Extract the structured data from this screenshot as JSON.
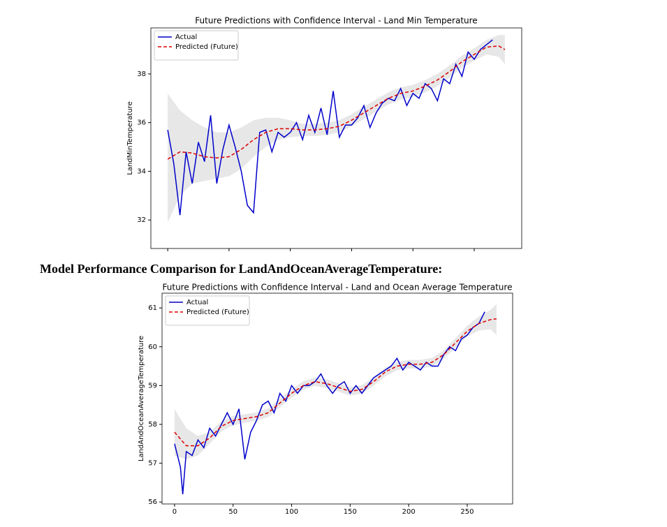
{
  "heading": "Model Performance Comparison for LandAndOceanAverageTemperature:",
  "chart_data": [
    {
      "type": "line",
      "title": "Future Predictions with Confidence Interval - Land Min Temperature",
      "ylabel": "LandMinTemperature",
      "xlim": [
        -13.75,
        288.75
      ],
      "ylim": [
        30.83,
        39.89
      ],
      "xticks": [
        0,
        50,
        100,
        150,
        200,
        250
      ],
      "xtick_labels": false,
      "yticks": [
        32,
        34,
        36,
        38
      ],
      "legend": "upper left",
      "series": [
        {
          "name": "Actual",
          "color": "#0000cc",
          "x": [
            0,
            5,
            10,
            15,
            20,
            25,
            30,
            35,
            40,
            45,
            50,
            55,
            60,
            65,
            70,
            75,
            80,
            85,
            90,
            95,
            100,
            105,
            110,
            115,
            120,
            125,
            130,
            135,
            140,
            145,
            150,
            155,
            160,
            165,
            170,
            175,
            180,
            185,
            190,
            195,
            200,
            205,
            210,
            215,
            220,
            225,
            230,
            235,
            240,
            245,
            250,
            255,
            260,
            265
          ],
          "values": [
            35.7,
            34.3,
            32.2,
            34.8,
            33.5,
            35.2,
            34.4,
            36.3,
            33.5,
            34.9,
            35.9,
            35.0,
            34.0,
            32.6,
            32.3,
            35.6,
            35.7,
            34.8,
            35.6,
            35.4,
            35.6,
            36.0,
            35.3,
            36.3,
            35.6,
            36.6,
            35.5,
            37.3,
            35.4,
            35.9,
            35.9,
            36.2,
            36.7,
            35.8,
            36.4,
            36.8,
            37.0,
            36.9,
            37.4,
            36.7,
            37.2,
            37.0,
            37.6,
            37.4,
            36.9,
            37.8,
            37.6,
            38.4,
            37.9,
            38.9,
            38.6,
            39.0,
            39.2,
            39.4
          ]
        },
        {
          "name": "Predicted (Future)",
          "color": "#dd0000",
          "dashed": true,
          "band_color": "#d3d3d3",
          "x": [
            0,
            10,
            20,
            30,
            40,
            50,
            60,
            70,
            80,
            90,
            100,
            110,
            120,
            130,
            140,
            150,
            160,
            170,
            180,
            190,
            200,
            210,
            220,
            230,
            240,
            250,
            260,
            270,
            275
          ],
          "values": [
            34.5,
            34.8,
            34.75,
            34.6,
            34.55,
            34.6,
            34.9,
            35.3,
            35.6,
            35.75,
            35.75,
            35.7,
            35.7,
            35.75,
            35.85,
            36.1,
            36.4,
            36.7,
            37.0,
            37.2,
            37.3,
            37.5,
            37.75,
            38.1,
            38.5,
            38.8,
            39.1,
            39.15,
            39.0
          ],
          "lower": [
            31.9,
            33.0,
            33.5,
            33.6,
            33.7,
            33.8,
            34.1,
            34.6,
            35.0,
            35.3,
            35.4,
            35.45,
            35.45,
            35.5,
            35.6,
            35.85,
            36.15,
            36.45,
            36.75,
            36.95,
            37.05,
            37.25,
            37.5,
            37.85,
            38.25,
            38.55,
            38.8,
            38.7,
            38.4
          ],
          "upper": [
            37.2,
            36.5,
            36.1,
            35.8,
            35.6,
            35.6,
            35.8,
            36.1,
            36.2,
            36.2,
            36.1,
            35.95,
            35.95,
            36.0,
            36.1,
            36.35,
            36.65,
            36.95,
            37.25,
            37.45,
            37.55,
            37.75,
            38.0,
            38.35,
            38.75,
            39.05,
            39.4,
            39.6,
            39.6
          ]
        }
      ]
    },
    {
      "type": "line",
      "title": "Future Predictions with Confidence Interval - Land and Ocean Average Temperature",
      "ylabel": "LandAndOceanAverageTemperature",
      "xlim": [
        -10.7,
        288.8
      ],
      "ylim": [
        55.95,
        61.38
      ],
      "xticks": [
        0,
        50,
        100,
        150,
        200,
        250
      ],
      "xtick_labels": true,
      "yticks": [
        56,
        57,
        58,
        59,
        60,
        61
      ],
      "legend": "upper left",
      "series": [
        {
          "name": "Actual",
          "color": "#0000cc",
          "x": [
            0,
            5,
            7,
            10,
            15,
            20,
            25,
            30,
            35,
            40,
            45,
            50,
            55,
            60,
            65,
            70,
            75,
            80,
            85,
            90,
            95,
            100,
            105,
            110,
            115,
            120,
            125,
            130,
            135,
            140,
            145,
            150,
            155,
            160,
            165,
            170,
            175,
            180,
            185,
            190,
            195,
            200,
            205,
            210,
            215,
            220,
            225,
            230,
            235,
            240,
            245,
            250,
            255,
            260,
            265
          ],
          "values": [
            57.5,
            56.9,
            56.2,
            57.3,
            57.2,
            57.6,
            57.4,
            57.9,
            57.7,
            58.0,
            58.3,
            58.0,
            58.4,
            57.1,
            57.8,
            58.1,
            58.5,
            58.6,
            58.3,
            58.8,
            58.6,
            59.0,
            58.8,
            59.0,
            59.0,
            59.1,
            59.3,
            59.0,
            58.8,
            59.0,
            59.1,
            58.8,
            59.0,
            58.8,
            59.0,
            59.2,
            59.3,
            59.4,
            59.5,
            59.7,
            59.4,
            59.6,
            59.5,
            59.4,
            59.6,
            59.5,
            59.5,
            59.8,
            60.0,
            59.9,
            60.2,
            60.3,
            60.5,
            60.6,
            60.9
          ]
        },
        {
          "name": "Predicted (Future)",
          "color": "#dd0000",
          "dashed": true,
          "band_color": "#d3d3d3",
          "x": [
            0,
            10,
            20,
            30,
            40,
            50,
            60,
            70,
            80,
            90,
            100,
            110,
            120,
            130,
            140,
            150,
            160,
            170,
            180,
            190,
            200,
            210,
            220,
            230,
            240,
            250,
            260,
            270,
            275
          ],
          "values": [
            57.8,
            57.45,
            57.45,
            57.65,
            57.95,
            58.1,
            58.15,
            58.2,
            58.3,
            58.55,
            58.8,
            59.0,
            59.1,
            59.05,
            58.95,
            58.85,
            58.9,
            59.1,
            59.35,
            59.5,
            59.55,
            59.55,
            59.6,
            59.8,
            60.1,
            60.4,
            60.6,
            60.7,
            60.72
          ],
          "lower": [
            57.2,
            57.1,
            57.2,
            57.5,
            57.82,
            57.98,
            58.04,
            58.09,
            58.19,
            58.44,
            58.69,
            58.89,
            58.99,
            58.94,
            58.84,
            58.74,
            58.79,
            58.99,
            59.24,
            59.39,
            59.44,
            59.44,
            59.49,
            59.69,
            59.98,
            60.26,
            60.42,
            60.45,
            60.3
          ],
          "upper": [
            58.4,
            57.9,
            57.7,
            57.8,
            58.08,
            58.22,
            58.26,
            58.31,
            58.41,
            58.66,
            58.91,
            59.11,
            59.21,
            59.16,
            59.06,
            58.96,
            59.01,
            59.21,
            59.46,
            59.61,
            59.66,
            59.66,
            59.71,
            59.91,
            60.22,
            60.54,
            60.78,
            60.95,
            61.1
          ]
        }
      ]
    }
  ]
}
